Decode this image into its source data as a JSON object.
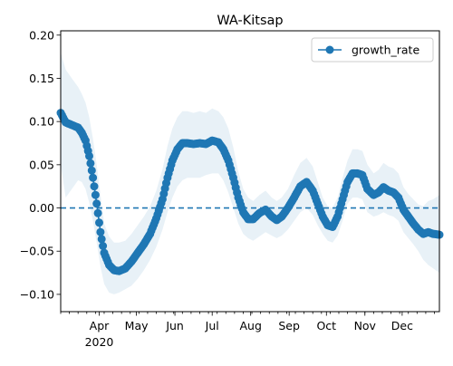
{
  "chart_data": {
    "type": "line",
    "title": "WA-Kitsap",
    "xlabel": "",
    "ylabel": "",
    "x_range": [
      "2020-03-01",
      "2020-12-31"
    ],
    "ylim": [
      -0.12,
      0.205
    ],
    "grid": false,
    "legend_position": "top-right",
    "x_ticks": [
      {
        "date": "2020-04-01",
        "label": "Apr",
        "sublabel": "2020"
      },
      {
        "date": "2020-05-01",
        "label": "May"
      },
      {
        "date": "2020-06-01",
        "label": "Jun"
      },
      {
        "date": "2020-07-01",
        "label": "Jul"
      },
      {
        "date": "2020-08-01",
        "label": "Aug"
      },
      {
        "date": "2020-09-01",
        "label": "Sep"
      },
      {
        "date": "2020-10-01",
        "label": "Oct"
      },
      {
        "date": "2020-11-01",
        "label": "Nov"
      },
      {
        "date": "2020-12-01",
        "label": "Dec"
      }
    ],
    "y_ticks": [
      {
        "value": -0.1,
        "label": "−0.10"
      },
      {
        "value": -0.05,
        "label": "−0.05"
      },
      {
        "value": 0.0,
        "label": "0.00"
      },
      {
        "value": 0.05,
        "label": "0.05"
      },
      {
        "value": 0.1,
        "label": "0.10"
      },
      {
        "value": 0.15,
        "label": "0.15"
      },
      {
        "value": 0.2,
        "label": "0.20"
      }
    ],
    "reference_line": {
      "y": 0.0,
      "style": "dashed"
    },
    "series": [
      {
        "name": "growth_rate",
        "color": "#1f77b4",
        "marker": "circle",
        "band_color": "#1f77b4",
        "band_opacity": 0.1,
        "x": [
          "2020-03-01",
          "2020-03-05",
          "2020-03-10",
          "2020-03-15",
          "2020-03-18",
          "2020-03-21",
          "2020-03-24",
          "2020-03-27",
          "2020-03-30",
          "2020-04-02",
          "2020-04-05",
          "2020-04-09",
          "2020-04-13",
          "2020-04-17",
          "2020-04-22",
          "2020-04-27",
          "2020-05-02",
          "2020-05-07",
          "2020-05-12",
          "2020-05-17",
          "2020-05-22",
          "2020-05-26",
          "2020-05-30",
          "2020-06-03",
          "2020-06-07",
          "2020-06-11",
          "2020-06-16",
          "2020-06-21",
          "2020-06-26",
          "2020-07-01",
          "2020-07-06",
          "2020-07-10",
          "2020-07-14",
          "2020-07-18",
          "2020-07-22",
          "2020-07-26",
          "2020-07-30",
          "2020-08-03",
          "2020-08-08",
          "2020-08-13",
          "2020-08-18",
          "2020-08-22",
          "2020-08-26",
          "2020-08-31",
          "2020-09-05",
          "2020-09-10",
          "2020-09-15",
          "2020-09-20",
          "2020-09-24",
          "2020-09-28",
          "2020-10-02",
          "2020-10-06",
          "2020-10-10",
          "2020-10-14",
          "2020-10-18",
          "2020-10-22",
          "2020-10-26",
          "2020-10-30",
          "2020-11-03",
          "2020-11-08",
          "2020-11-12",
          "2020-11-16",
          "2020-11-20",
          "2020-11-24",
          "2020-11-28",
          "2020-12-02",
          "2020-12-06",
          "2020-12-10",
          "2020-12-14",
          "2020-12-18",
          "2020-12-22",
          "2020-12-26",
          "2020-12-31"
        ],
        "y": [
          0.11,
          0.099,
          0.096,
          0.093,
          0.087,
          0.078,
          0.06,
          0.035,
          0.005,
          -0.028,
          -0.052,
          -0.066,
          -0.072,
          -0.073,
          -0.07,
          -0.062,
          -0.052,
          -0.042,
          -0.03,
          -0.012,
          0.01,
          0.035,
          0.055,
          0.068,
          0.075,
          0.075,
          0.074,
          0.075,
          0.074,
          0.078,
          0.076,
          0.068,
          0.055,
          0.035,
          0.012,
          -0.005,
          -0.013,
          -0.013,
          -0.006,
          -0.002,
          -0.01,
          -0.014,
          -0.01,
          0.0,
          0.012,
          0.025,
          0.03,
          0.02,
          0.005,
          -0.01,
          -0.02,
          -0.022,
          -0.01,
          0.01,
          0.03,
          0.04,
          0.04,
          0.038,
          0.022,
          0.015,
          0.018,
          0.024,
          0.02,
          0.018,
          0.012,
          -0.002,
          -0.01,
          -0.018,
          -0.025,
          -0.03,
          -0.028,
          -0.03,
          -0.031
        ],
        "lower": [
          0.05,
          0.012,
          0.022,
          0.032,
          0.03,
          0.022,
          0.006,
          -0.015,
          -0.04,
          -0.068,
          -0.088,
          -0.098,
          -0.1,
          -0.098,
          -0.094,
          -0.09,
          -0.082,
          -0.072,
          -0.06,
          -0.045,
          -0.025,
          -0.005,
          0.012,
          0.025,
          0.032,
          0.035,
          0.035,
          0.035,
          0.038,
          0.04,
          0.04,
          0.032,
          0.018,
          0.0,
          -0.018,
          -0.03,
          -0.035,
          -0.038,
          -0.033,
          -0.028,
          -0.032,
          -0.035,
          -0.032,
          -0.025,
          -0.015,
          -0.005,
          0.0,
          -0.008,
          -0.02,
          -0.03,
          -0.038,
          -0.04,
          -0.032,
          -0.015,
          0.005,
          0.012,
          0.012,
          0.01,
          -0.005,
          -0.01,
          -0.008,
          -0.005,
          -0.008,
          -0.01,
          -0.015,
          -0.028,
          -0.035,
          -0.042,
          -0.05,
          -0.06,
          -0.066,
          -0.07,
          -0.075
        ],
        "upper": [
          0.18,
          0.16,
          0.15,
          0.14,
          0.132,
          0.122,
          0.105,
          0.08,
          0.05,
          0.015,
          -0.018,
          -0.033,
          -0.04,
          -0.04,
          -0.038,
          -0.03,
          -0.02,
          -0.01,
          0.002,
          0.02,
          0.045,
          0.072,
          0.092,
          0.105,
          0.112,
          0.112,
          0.11,
          0.112,
          0.11,
          0.115,
          0.112,
          0.105,
          0.092,
          0.07,
          0.042,
          0.022,
          0.012,
          0.008,
          0.015,
          0.02,
          0.012,
          0.008,
          0.012,
          0.022,
          0.038,
          0.052,
          0.058,
          0.048,
          0.03,
          0.012,
          0.002,
          0.0,
          0.012,
          0.035,
          0.055,
          0.068,
          0.068,
          0.066,
          0.05,
          0.04,
          0.044,
          0.052,
          0.048,
          0.046,
          0.04,
          0.024,
          0.016,
          0.01,
          0.004,
          0.002,
          0.008,
          0.01,
          0.015
        ]
      }
    ]
  }
}
